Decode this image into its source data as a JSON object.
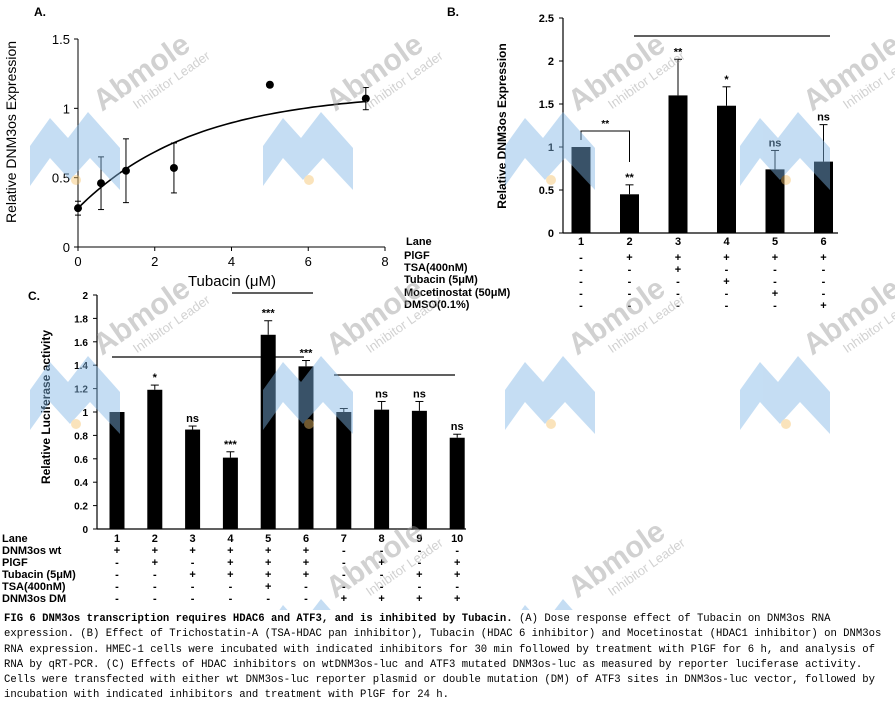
{
  "watermark": {
    "brand": "Abmole",
    "tagline": "Inhibitor Leader",
    "color": "#7fb6e6"
  },
  "panelA": {
    "label": "A.",
    "ylabel": "Relative DNM3os Expression",
    "xlabel": "Tubacin (μM)",
    "chart_data": {
      "type": "scatter",
      "x": [
        0,
        0.6,
        1.25,
        2.5,
        5,
        7.5
      ],
      "y": [
        0.28,
        0.46,
        0.55,
        0.57,
        1.17,
        1.07
      ],
      "err": [
        0.05,
        0.19,
        0.23,
        0.18,
        0.0,
        0.08
      ],
      "xlim": [
        0,
        8
      ],
      "ylim": [
        0,
        1.5
      ],
      "xticks": [
        "0",
        "2",
        "4",
        "6",
        "8"
      ],
      "yticks": [
        "0",
        "0.5",
        "1",
        "1.5"
      ],
      "fit": "trend curve"
    }
  },
  "panelB": {
    "label": "B.",
    "ylabel": "Relative DNM3os Expression",
    "chart_data": {
      "type": "bar",
      "categories": [
        "1",
        "2",
        "3",
        "4",
        "5",
        "6"
      ],
      "values": [
        1.0,
        0.45,
        1.6,
        1.48,
        0.74,
        0.83
      ],
      "err": [
        0.0,
        0.11,
        0.42,
        0.22,
        0.22,
        0.43
      ],
      "sig": [
        "",
        "**",
        "**",
        "*",
        "ns",
        "ns"
      ],
      "ylim": [
        0,
        2.5
      ],
      "yticks": [
        "0",
        "0.5",
        "1",
        "1.5",
        "2",
        "2.5"
      ],
      "bracket_label": "**"
    },
    "table": {
      "rows": [
        {
          "label": "Lane",
          "cells": [
            "1",
            "2",
            "3",
            "4",
            "5",
            "6"
          ]
        },
        {
          "label": "PlGF",
          "cells": [
            "-",
            "+",
            "+",
            "+",
            "+",
            "+"
          ]
        },
        {
          "label": "TSA(400nM)",
          "cells": [
            "-",
            "-",
            "+",
            "-",
            "-",
            "-"
          ]
        },
        {
          "label": "Tubacin (5μM)",
          "cells": [
            "-",
            "-",
            "-",
            "+",
            "-",
            "-"
          ]
        },
        {
          "label": "Mocetinostat (50μM)",
          "cells": [
            "-",
            "-",
            "-",
            "-",
            "+",
            "-"
          ]
        },
        {
          "label": "DMSO(0.1%)",
          "cells": [
            "-",
            "-",
            "-",
            "-",
            "-",
            "+"
          ]
        }
      ]
    }
  },
  "panelC": {
    "label": "C.",
    "ylabel": "Relative Luciferase activity",
    "chart_data": {
      "type": "bar",
      "categories": [
        "1",
        "2",
        "3",
        "4",
        "5",
        "6",
        "7",
        "8",
        "9",
        "10"
      ],
      "values": [
        1.0,
        1.19,
        0.85,
        0.61,
        1.66,
        1.39,
        1.0,
        1.02,
        1.01,
        0.78
      ],
      "err": [
        0.0,
        0.04,
        0.03,
        0.05,
        0.12,
        0.05,
        0.03,
        0.07,
        0.08,
        0.03
      ],
      "sig": [
        "",
        "*",
        "ns",
        "***",
        "***",
        "***",
        "",
        "ns",
        "ns",
        "ns"
      ],
      "ylim": [
        0,
        2
      ],
      "yticks": [
        "0",
        "0.2",
        "0.4",
        "0.6",
        "0.8",
        "1",
        "1.2",
        "1.4",
        "1.6",
        "1.8",
        "2"
      ]
    },
    "table": {
      "rows": [
        {
          "label": "Lane",
          "cells": [
            "1",
            "2",
            "3",
            "4",
            "5",
            "6",
            "7",
            "8",
            "9",
            "10"
          ]
        },
        {
          "label": "DNM3os wt",
          "cells": [
            "+",
            "+",
            "+",
            "+",
            "+",
            "+",
            "-",
            "-",
            "-",
            "-"
          ]
        },
        {
          "label": "PlGF",
          "cells": [
            "-",
            "+",
            "-",
            "+",
            "+",
            "+",
            "-",
            "+",
            "-",
            "+"
          ]
        },
        {
          "label": "Tubacin (5μM)",
          "cells": [
            "-",
            "-",
            "+",
            "+",
            "+",
            "+",
            "-",
            "-",
            "+",
            "+"
          ]
        },
        {
          "label": "TSA(400nM)",
          "cells": [
            "-",
            "-",
            "-",
            "-",
            "+",
            "-",
            "-",
            "-",
            "-",
            "-"
          ]
        },
        {
          "label": "DNM3os DM",
          "cells": [
            "-",
            "-",
            "-",
            "-",
            "-",
            "-",
            "+",
            "+",
            "+",
            "+"
          ]
        }
      ]
    }
  },
  "caption": {
    "title": "FIG 6 DNM3os transcription requires HDAC6 and ATF3, and is inhibited by Tubacin.",
    "body": " (A) Dose response effect of Tubacin on DNM3os RNA expression. (B) Effect of Trichostatin-A (TSA-HDAC pan inhibitor), Tubacin (HDAC 6 inhibitor) and Mocetinostat (HDAC1 inhibitor) on DNM3os RNA expression. HMEC-1 cells were incubated with indicated inhibitors for 30 min followed by treatment with PlGF for 6 h, and analysis of RNA by qRT-PCR. (C) Effects of HDAC inhibitors on wtDNM3os-luc and ATF3 mutated DNM3os-luc as measured by reporter luciferase activity. Cells were transfected with either wt DNM3os-luc reporter plasmid or double mutation (DM) of ATF3 sites in DNM3os-luc vector, followed by incubation with indicated inhibitors and treatment with PlGF for 24 h."
  }
}
